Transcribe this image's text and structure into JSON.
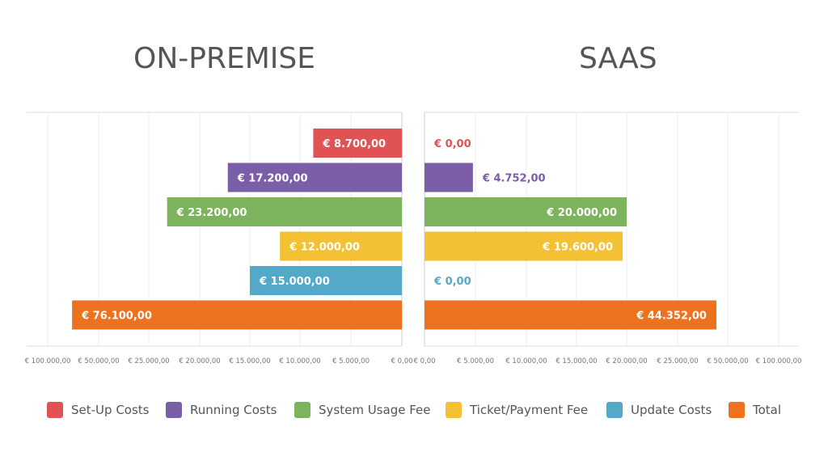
{
  "chart_data": {
    "type": "bar",
    "categories": [
      "Set-Up Costs",
      "Running Costs",
      "System Usage Fee",
      "Ticket/Payment Fee",
      "Update Costs",
      "Total"
    ],
    "colors": [
      "#e05254",
      "#7b5ea8",
      "#7cb45e",
      "#f4c135",
      "#55a9c8",
      "#ed7220"
    ],
    "panels": [
      {
        "title": "ON-PREMISE",
        "direction": "left",
        "values": [
          8700,
          17200,
          23200,
          12000,
          15000,
          76100
        ],
        "value_labels": [
          "€ 8.700,00",
          "€ 17.200,00",
          "€ 23.200,00",
          "€ 12.000,00",
          "€ 15.000,00",
          "€ 76.100,00"
        ],
        "tick_labels": [
          "€ 100.000,00",
          "€ 50.000,00",
          "€ 25.000,00",
          "€ 20.000,00",
          "€ 15.000,00",
          "€ 10.000,00",
          "€ 5.000,00",
          "€ 0,00"
        ],
        "tick_values": [
          100000,
          50000,
          25000,
          20000,
          15000,
          10000,
          5000,
          0
        ]
      },
      {
        "title": "SAAS",
        "direction": "right",
        "values": [
          0,
          4752,
          20000,
          19600,
          0,
          44352
        ],
        "value_labels": [
          "€ 0,00",
          "€ 4.752,00",
          "€ 20.000,00",
          "€ 19.600,00",
          "€ 0,00",
          "€ 44.352,00"
        ],
        "tick_labels": [
          "€ 0,00",
          "€ 5.000,00",
          "€ 10.000,00",
          "€ 15.000,00",
          "€ 20.000,00",
          "€ 25.000,00",
          "€ 50.000,00",
          "€ 100.000,00"
        ],
        "tick_values": [
          0,
          5000,
          10000,
          15000,
          20000,
          25000,
          50000,
          100000
        ]
      }
    ],
    "scale": "piecewise (0–25.000 linear, then 50.000 and 100.000 compressed)",
    "grid": true,
    "legend_position": "bottom"
  }
}
